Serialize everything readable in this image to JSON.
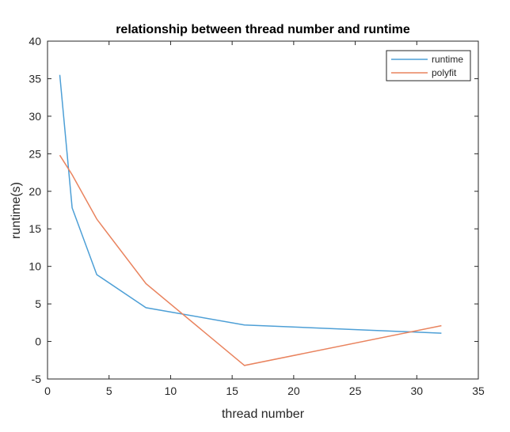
{
  "chart_data": {
    "type": "line",
    "title": "relationship between thread number and runtime",
    "xlabel": "thread number",
    "ylabel": "runtime(s)",
    "xlim": [
      0,
      35
    ],
    "ylim": [
      -5,
      40
    ],
    "xticks": [
      0,
      5,
      10,
      15,
      20,
      25,
      30,
      35
    ],
    "yticks": [
      -5,
      0,
      5,
      10,
      15,
      20,
      25,
      30,
      35,
      40
    ],
    "grid": false,
    "legend_position": "top-right",
    "series": [
      {
        "name": "runtime",
        "color": "#4d9fd6",
        "x": [
          1,
          2,
          4,
          8,
          16,
          32
        ],
        "y": [
          35.5,
          17.8,
          8.9,
          4.5,
          2.2,
          1.1
        ]
      },
      {
        "name": "polyfit",
        "color": "#e9835e",
        "x": [
          1,
          2,
          4,
          8,
          16,
          32
        ],
        "y": [
          24.8,
          22.2,
          16.3,
          7.7,
          -3.2,
          2.1
        ]
      }
    ]
  }
}
